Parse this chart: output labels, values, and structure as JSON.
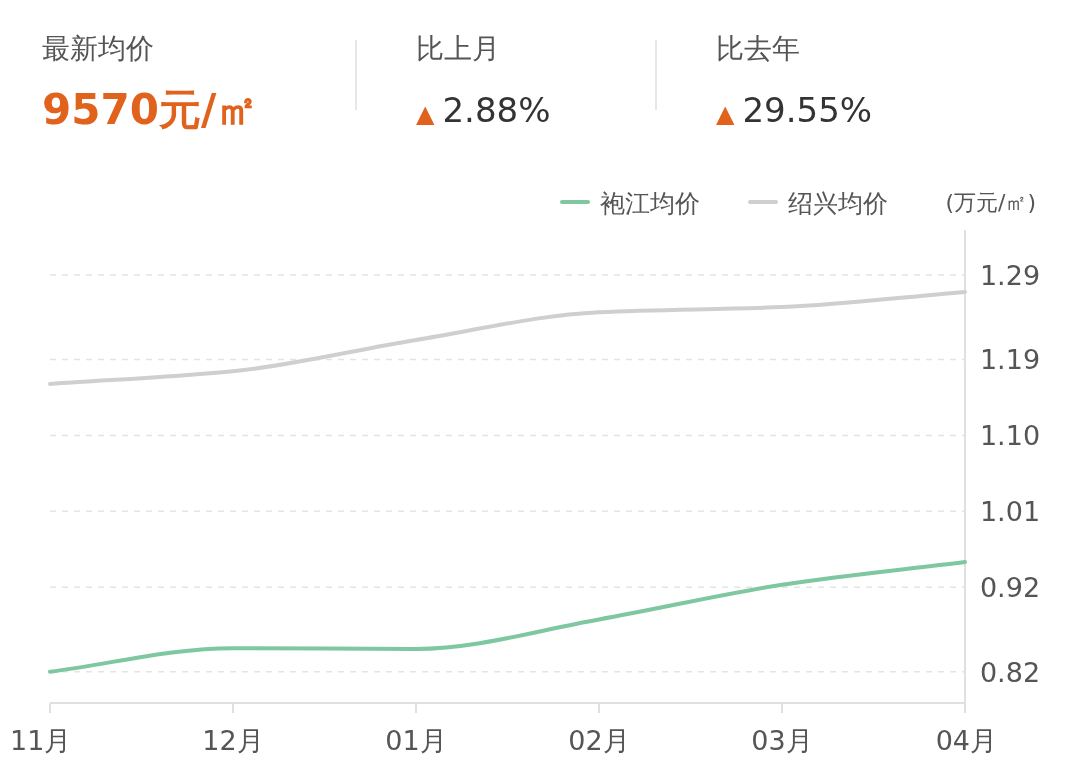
{
  "chart_data": {
    "type": "line",
    "annotations": [
      "最新均价",
      "9570元/㎡",
      "比上月",
      "▲ 2.88%",
      "比去年",
      "▲ 29.55%"
    ],
    "categories": [
      "11月",
      "12月",
      "01月",
      "02月",
      "03月",
      "04月"
    ],
    "series": [
      {
        "name": "袍江均价",
        "color": "#7ec7a0",
        "values": [
          0.82,
          0.848,
          0.847,
          0.882,
          0.923,
          0.95
        ]
      },
      {
        "name": "绍兴均价",
        "color": "#cfcfd1",
        "values": [
          1.161,
          1.176,
          1.213,
          1.246,
          1.252,
          1.27
        ]
      }
    ],
    "ylabel": "(万元/㎡)",
    "ylim": [
      0.783,
      1.29
    ],
    "yticks": [
      {
        "value": 0.82,
        "label": "0.82"
      },
      {
        "value": 0.92,
        "label": "0.92"
      },
      {
        "value": 1.01,
        "label": "1.01"
      },
      {
        "value": 1.1,
        "label": "1.10"
      },
      {
        "value": 1.19,
        "label": "1.19"
      },
      {
        "value": 1.29,
        "label": "1.29"
      }
    ],
    "grid": "y",
    "legend": "top right",
    "marker": "none"
  }
}
